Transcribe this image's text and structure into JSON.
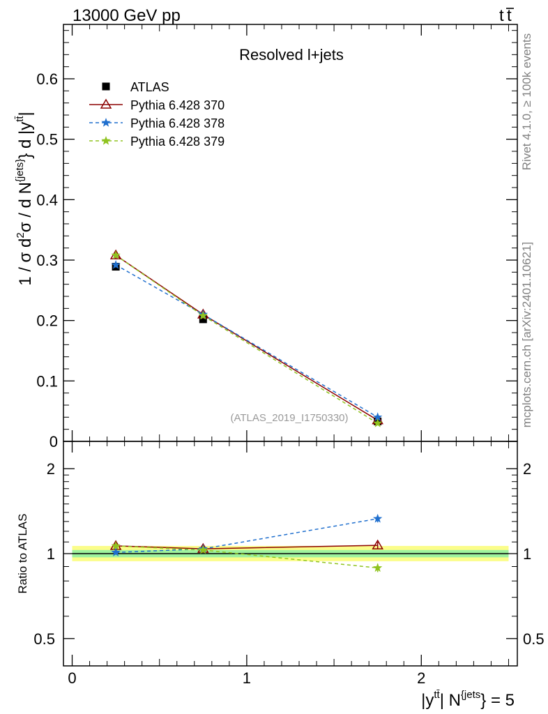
{
  "header": {
    "left": "13000 GeV pp",
    "right_base": "t",
    "right_bar": "t"
  },
  "side_labels": {
    "rivet": "Rivet 4.1.0, ≥ 100k events",
    "mcplots": "mcplots.cern.ch [arXiv:2401.10621]"
  },
  "chart_data": [
    {
      "type": "line",
      "panel": "main",
      "title": "Resolved l+jets",
      "watermark": "(ATLAS_2019_I1750330)",
      "ylabel": "1 / σ d²σ / d N^{jets} d |y^{tt̄}|",
      "ylabel_parts": {
        "prefix": "1 / σ d",
        "sup1": "2",
        "mid": "σ / d N",
        "sup2": "{jets}",
        "mid2": "} d |y",
        "sup3": "tt̄",
        "end": "|"
      },
      "xlim": [
        -0.05,
        2.55
      ],
      "ylim": [
        0,
        0.69
      ],
      "yticks": [
        0,
        0.1,
        0.2,
        0.3,
        0.4,
        0.5,
        0.6
      ],
      "ytick_labels": [
        "0",
        "0.1",
        "0.2",
        "0.3",
        "0.4",
        "0.5",
        "0.6"
      ],
      "x": [
        0.25,
        0.75,
        1.75
      ],
      "series": [
        {
          "name": "ATLAS",
          "marker": "square",
          "color": "#000000",
          "values": [
            0.289,
            0.202,
            0.033
          ],
          "errors": [
            0.005,
            0.004,
            0.002
          ]
        },
        {
          "name": "Pythia 6.428 370",
          "marker": "triangle",
          "color": "#8b0000",
          "dash": "solid",
          "values": [
            0.308,
            0.21,
            0.035
          ],
          "errors": [
            0.006,
            0.004,
            0.0015
          ]
        },
        {
          "name": "Pythia 6.428 378",
          "marker": "star",
          "color": "#1f6fce",
          "dash": "dashed",
          "values": [
            0.292,
            0.21,
            0.04
          ],
          "errors": [
            0.004,
            0.003,
            0.001
          ]
        },
        {
          "name": "Pythia 6.428 379",
          "marker": "star",
          "color": "#8fc31f",
          "dash": "dashed",
          "values": [
            0.308,
            0.208,
            0.03
          ],
          "errors": [
            0.004,
            0.003,
            0.001
          ]
        }
      ]
    },
    {
      "type": "line",
      "panel": "ratio",
      "ylabel": "Ratio to ATLAS",
      "xlabel": "|y^{tt̄}| N^{jets} = 5",
      "xlabel_parts": {
        "a": "|y",
        "a_sup": "tt̄",
        "b": "| N",
        "b_sup": "{jets",
        "c": "} = 5"
      },
      "xlim": [
        -0.05,
        2.55
      ],
      "xticks": [
        0,
        1,
        2
      ],
      "xtick_labels": [
        "0",
        "1",
        "2"
      ],
      "yscale": "log",
      "ylim": [
        0.4,
        2.5
      ],
      "yticks": [
        0.5,
        1,
        2
      ],
      "ytick_labels": [
        "0.5",
        "1",
        "2"
      ],
      "band_inner": [
        0.97,
        1.03
      ],
      "band_outer": [
        0.94,
        1.065
      ],
      "x": [
        0.25,
        0.75,
        1.75
      ],
      "series": [
        {
          "name": "Pythia 6.428 370",
          "values": [
            1.065,
            1.04,
            1.07
          ],
          "errors": [
            0.015,
            0.01,
            0.03
          ]
        },
        {
          "name": "Pythia 6.428 378",
          "values": [
            1.01,
            1.04,
            1.33
          ],
          "errors": [
            0.01,
            0.01,
            0.04
          ]
        },
        {
          "name": "Pythia 6.428 379",
          "values": [
            1.065,
            1.03,
            0.89
          ],
          "errors": [
            0.015,
            0.01,
            0.03
          ]
        }
      ]
    }
  ]
}
